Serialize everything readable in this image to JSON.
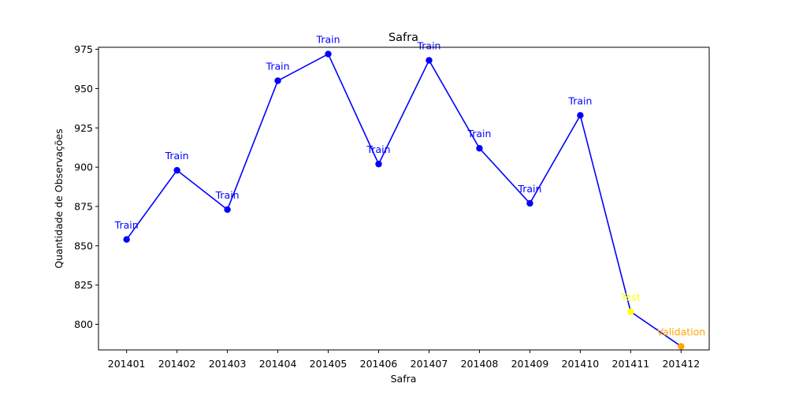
{
  "chart_data": {
    "type": "line",
    "title": "Safra",
    "xlabel": "Safra",
    "ylabel": "Quantidade de Observações",
    "categories": [
      "201401",
      "201402",
      "201403",
      "201404",
      "201405",
      "201406",
      "201407",
      "201408",
      "201409",
      "201410",
      "201411",
      "201412"
    ],
    "values": [
      854,
      898,
      873,
      955,
      972,
      902,
      968,
      912,
      877,
      933,
      808,
      786
    ],
    "point_labels": [
      "Train",
      "Train",
      "Train",
      "Train",
      "Train",
      "Train",
      "Train",
      "Train",
      "Train",
      "Train",
      "Test",
      "Validation"
    ],
    "point_colors": [
      "#0000ff",
      "#0000ff",
      "#0000ff",
      "#0000ff",
      "#0000ff",
      "#0000ff",
      "#0000ff",
      "#0000ff",
      "#0000ff",
      "#0000ff",
      "#ffff00",
      "#ffa500"
    ],
    "line_color": "#0000ff",
    "yticks": [
      800,
      825,
      850,
      875,
      900,
      925,
      950,
      975
    ],
    "ylim": [
      783.7,
      976.3
    ],
    "grid": false,
    "legend": "none"
  }
}
